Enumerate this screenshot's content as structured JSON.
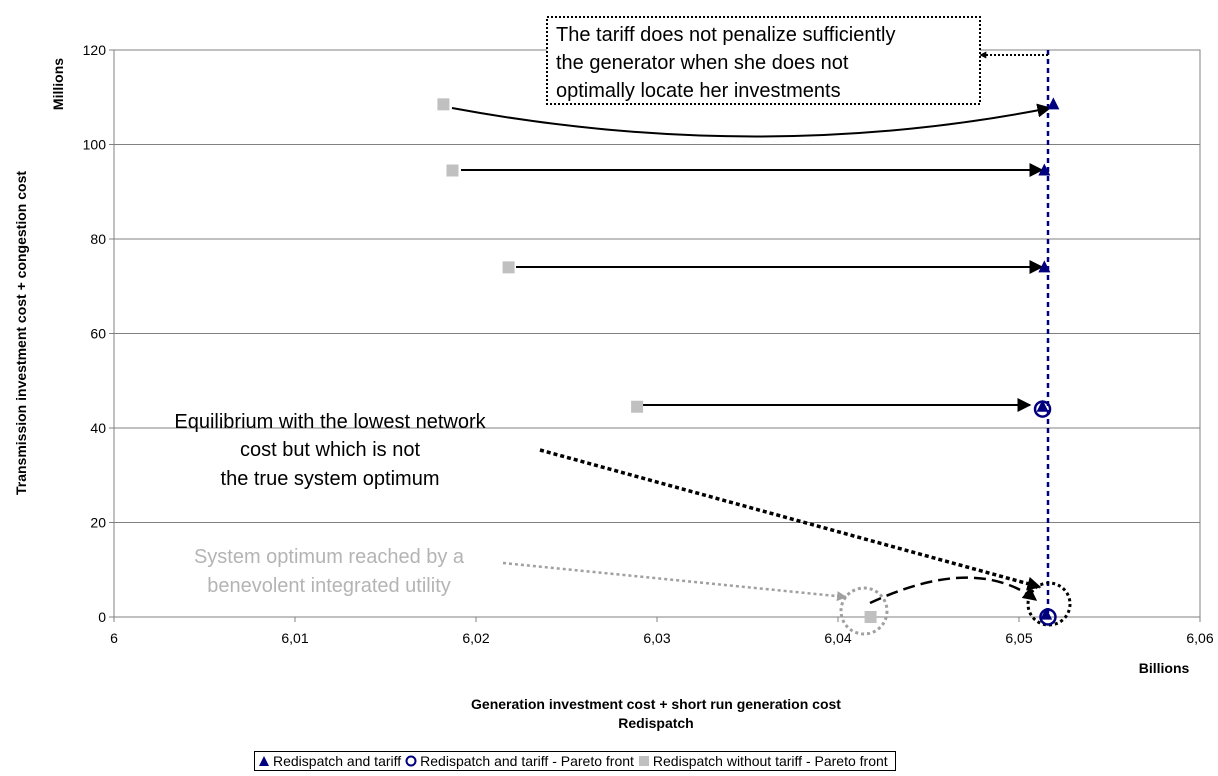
{
  "chart_data": {
    "type": "scatter",
    "title": "",
    "xlabel": "Generation investment cost + short run generation cost",
    "xlabel2": "Redispatch",
    "ylabel": "Transmission investment cost + congestion cost",
    "x_units": "Billions",
    "y_units": "Millions",
    "xlim": [
      6,
      6.06
    ],
    "ylim": [
      0,
      120
    ],
    "x_ticks": [
      6,
      6.01,
      6.02,
      6.03,
      6.04,
      6.05,
      6.06
    ],
    "x_tick_labels": [
      "6",
      "6,01",
      "6,02",
      "6,03",
      "6,04",
      "6,05",
      "6,06"
    ],
    "y_ticks": [
      0,
      20,
      40,
      60,
      80,
      100,
      120
    ],
    "y_tick_labels": [
      "0",
      "20",
      "40",
      "60",
      "80",
      "100",
      "120"
    ],
    "grid": "horizontal",
    "legend_position": "bottom",
    "series": [
      {
        "name": "Redispatch and tariff",
        "marker": "triangle",
        "color": "#00007f",
        "points": [
          [
            6.0519,
            108.5
          ],
          [
            6.0514,
            94.5
          ],
          [
            6.0514,
            74
          ],
          [
            6.0513,
            44.5
          ],
          [
            6.0515,
            0.5
          ]
        ]
      },
      {
        "name": "Redispatch and tariff - Pareto front",
        "marker": "circle",
        "color": "#00007f",
        "points": [
          [
            6.0513,
            44
          ],
          [
            6.0516,
            0
          ]
        ]
      },
      {
        "name": "Redispatch without tariff - Pareto front",
        "marker": "square",
        "color": "#c0c0c0",
        "points": [
          [
            6.0182,
            108.5
          ],
          [
            6.0187,
            94.5
          ],
          [
            6.0218,
            74
          ],
          [
            6.0289,
            44.5
          ],
          [
            6.0418,
            0
          ]
        ]
      }
    ],
    "reference_line": {
      "x": 6.0517,
      "color": "#00007f",
      "style": "dashed"
    },
    "annotations": {
      "box_lines": [
        "The tariff does not penalize sufficiently",
        "the generator when she does not",
        "optimally locate her investments"
      ],
      "equilibrium_lines": [
        "Equilibrium with the lowest network",
        "cost but which is not",
        "the true system optimum"
      ],
      "optimum_lines": [
        "System optimum reached by a",
        "benevolent integrated utility"
      ]
    }
  }
}
